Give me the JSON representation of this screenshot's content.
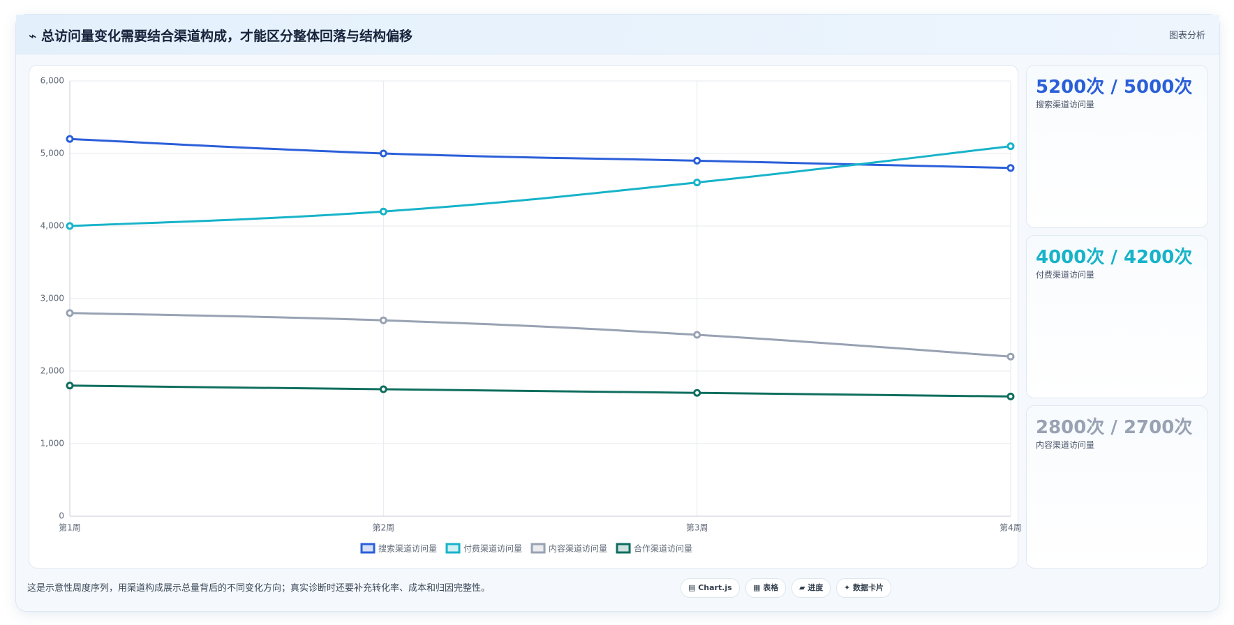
{
  "header": {
    "title": "⌁ 总访问量变化需要结合渠道构成，才能区分整体回落与结构偏移",
    "tag": "图表分析"
  },
  "chart_data": {
    "type": "line",
    "categories": [
      "第1周",
      "第2周",
      "第3周",
      "第4周"
    ],
    "series": [
      {
        "name": "搜索渠道访问量",
        "color": "#2b5fd9",
        "values": [
          5200,
          5000,
          4900,
          4800
        ]
      },
      {
        "name": "付费渠道访问量",
        "color": "#17b3c9",
        "values": [
          4000,
          4200,
          4600,
          5100
        ]
      },
      {
        "name": "内容渠道访问量",
        "color": "#98a2b3",
        "values": [
          2800,
          2700,
          2500,
          2200
        ]
      },
      {
        "name": "合作渠道访问量",
        "color": "#0f6e5e",
        "values": [
          1800,
          1750,
          1700,
          1650
        ]
      }
    ],
    "ylim": [
      0,
      6000
    ],
    "yticks": [
      0,
      {
        "value": 1000,
        "label": "1,000"
      },
      {
        "value": 2000,
        "label": "2,000"
      },
      {
        "value": 3000,
        "label": "3,000"
      },
      {
        "value": 4000,
        "label": "4,000"
      },
      {
        "value": 5000,
        "label": "5,000"
      },
      {
        "value": 6000,
        "label": "6,000"
      }
    ],
    "grid": true
  },
  "cards": [
    {
      "value": "5200次 / 5000次",
      "label": "搜索渠道访问量",
      "color": "#2b5fd9"
    },
    {
      "value": "4000次 / 4200次",
      "label": "付费渠道访问量",
      "color": "#17b3c9"
    },
    {
      "value": "2800次 / 2700次",
      "label": "内容渠道访问量",
      "color": "#98a2b3"
    }
  ],
  "footer": {
    "note": "这是示意性周度序列，用渠道构成展示总量背后的不同变化方向；真实诊断时还要补充转化率、成本和归因完整性。",
    "buttons": [
      "▤ Chart.js",
      "▦ 表格",
      "▰ 进度",
      "✦ 数据卡片"
    ]
  }
}
